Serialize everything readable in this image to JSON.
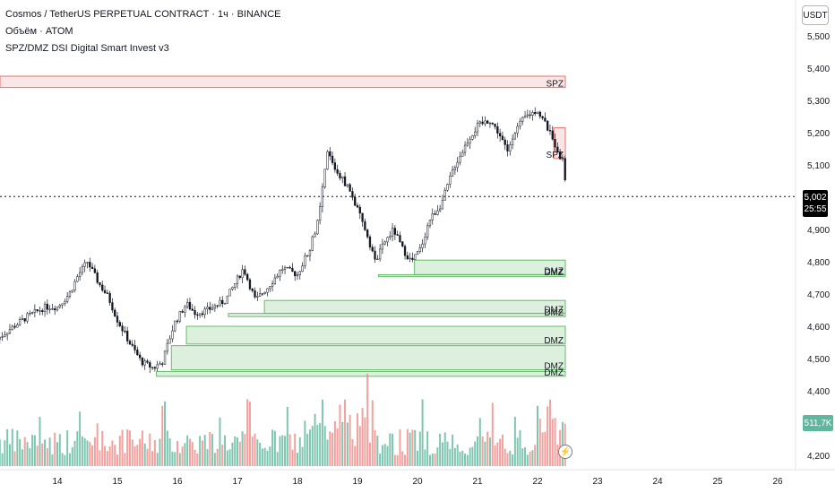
{
  "legend": {
    "symbol_line": "Cosmos / TetherUS PERPETUAL CONTRACT · 1ч · BINANCE",
    "volume_line": "Объём · ATOM",
    "indicator_line": "SPZ/DMZ DSI Digital Smart Invest v3"
  },
  "currency_button": "USDT",
  "last_price": "5,002",
  "countdown": "25:55",
  "volume_value": "511,7K",
  "bolt_icon": "lightning-icon",
  "colors": {
    "up": "#5fb89e",
    "down": "#ef8a86",
    "spz": "#e57373",
    "dmz": "#66bb6a",
    "wick": "#131722"
  },
  "chart_data": {
    "type": "candlestick",
    "x_axis_labels": [
      "14",
      "15",
      "16",
      "17",
      "18",
      "19",
      "20",
      "21",
      "22",
      "23",
      "24",
      "25",
      "26"
    ],
    "y_axis_labels": [
      "5,500",
      "5,400",
      "5,300",
      "5,200",
      "5,100",
      "4,900",
      "4,800",
      "4,700",
      "4,600",
      "4,500",
      "4,400",
      "4,200"
    ],
    "ylim": [
      4.19,
      5.56
    ],
    "last_price": 5.002,
    "zones": [
      {
        "label": "SPZ",
        "type": "supply",
        "top": 5.375,
        "bottom": 5.34,
        "start_day": 13.0
      },
      {
        "label": "SPZ",
        "type": "supply",
        "top": 5.215,
        "bottom": 5.12,
        "start_day": 22.27
      },
      {
        "label": "DMZ",
        "type": "demand",
        "top": 4.805,
        "bottom": 4.76,
        "start_day": 19.95
      },
      {
        "label": "DMZ",
        "type": "demand",
        "top": 4.76,
        "bottom": 4.755,
        "start_day": 19.35
      },
      {
        "label": "DMZ",
        "type": "demand",
        "top": 4.68,
        "bottom": 4.64,
        "start_day": 17.45
      },
      {
        "label": "DMZ",
        "type": "demand",
        "top": 4.64,
        "bottom": 4.63,
        "start_day": 16.85
      },
      {
        "label": "DMZ",
        "type": "demand",
        "top": 4.6,
        "bottom": 4.545,
        "start_day": 16.15
      },
      {
        "label": "DMZ",
        "type": "demand",
        "top": 4.54,
        "bottom": 4.465,
        "start_day": 15.9
      },
      {
        "label": "DMZ",
        "type": "demand",
        "top": 4.46,
        "bottom": 4.445,
        "start_day": 15.65
      }
    ],
    "price_anchors": [
      [
        13.0,
        4.56
      ],
      [
        13.2,
        4.59
      ],
      [
        13.5,
        4.63
      ],
      [
        13.8,
        4.66
      ],
      [
        14.0,
        4.66
      ],
      [
        14.2,
        4.7
      ],
      [
        14.35,
        4.76
      ],
      [
        14.5,
        4.8
      ],
      [
        14.7,
        4.73
      ],
      [
        14.85,
        4.69
      ],
      [
        15.0,
        4.62
      ],
      [
        15.2,
        4.55
      ],
      [
        15.4,
        4.49
      ],
      [
        15.6,
        4.47
      ],
      [
        15.75,
        4.49
      ],
      [
        15.95,
        4.61
      ],
      [
        16.15,
        4.67
      ],
      [
        16.3,
        4.64
      ],
      [
        16.5,
        4.65
      ],
      [
        16.8,
        4.68
      ],
      [
        17.1,
        4.78
      ],
      [
        17.3,
        4.68
      ],
      [
        17.5,
        4.72
      ],
      [
        17.75,
        4.78
      ],
      [
        18.0,
        4.76
      ],
      [
        18.2,
        4.84
      ],
      [
        18.35,
        4.93
      ],
      [
        18.5,
        5.14
      ],
      [
        18.65,
        5.08
      ],
      [
        18.85,
        5.03
      ],
      [
        19.0,
        4.96
      ],
      [
        19.15,
        4.89
      ],
      [
        19.3,
        4.8
      ],
      [
        19.45,
        4.86
      ],
      [
        19.6,
        4.9
      ],
      [
        19.75,
        4.84
      ],
      [
        19.9,
        4.8
      ],
      [
        20.05,
        4.84
      ],
      [
        20.2,
        4.93
      ],
      [
        20.4,
        4.98
      ],
      [
        20.6,
        5.09
      ],
      [
        20.85,
        5.18
      ],
      [
        21.0,
        5.22
      ],
      [
        21.2,
        5.24
      ],
      [
        21.35,
        5.2
      ],
      [
        21.5,
        5.14
      ],
      [
        21.6,
        5.2
      ],
      [
        21.8,
        5.25
      ],
      [
        22.0,
        5.27
      ],
      [
        22.15,
        5.22
      ],
      [
        22.3,
        5.16
      ],
      [
        22.42,
        5.11
      ],
      [
        22.5,
        5.0
      ]
    ],
    "volume_profile": "bars grow toward right, peaks near day 18.2–19.2 and 22.1–22.4"
  }
}
